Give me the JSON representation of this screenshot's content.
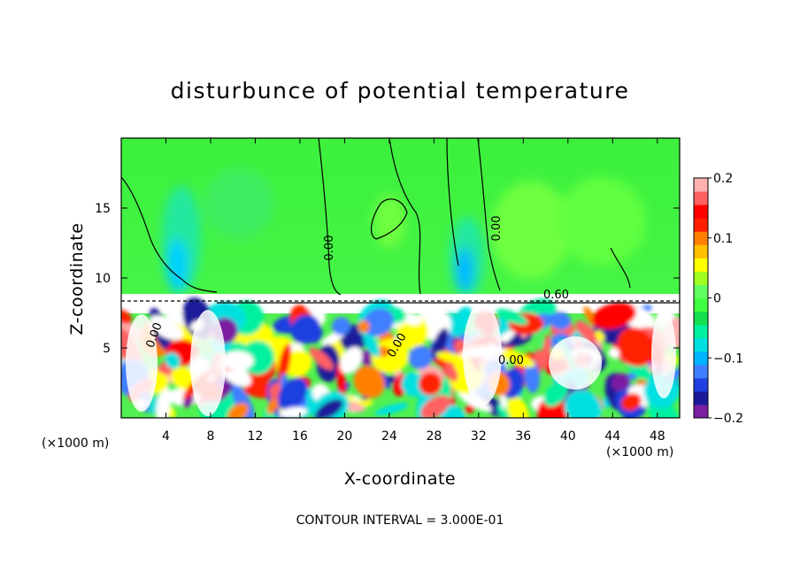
{
  "chart_data": {
    "type": "heatmap",
    "title": "disturbunce of potential temperature",
    "xlabel": "X-coordinate",
    "ylabel": "Z-coordinate",
    "x_unit": "(×1000 m)",
    "x_unit_right": "(×1000 m)",
    "xlim": [
      0,
      50
    ],
    "ylim": [
      0,
      20
    ],
    "x_ticks": [
      "4",
      "8",
      "12",
      "16",
      "20",
      "24",
      "28",
      "32",
      "36",
      "40",
      "44",
      "48"
    ],
    "y_ticks": [
      "5",
      "10",
      "15"
    ],
    "colorbar": {
      "range": [
        -0.2,
        0.2
      ],
      "ticks": [
        "0.2",
        "0.1",
        "0",
        "−0.1",
        "−0.2"
      ],
      "colors": [
        "#7b1fa2",
        "#1a1a9a",
        "#1f3fe0",
        "#3f7fff",
        "#00b4ff",
        "#00e0e0",
        "#00f0a0",
        "#14e050",
        "#40ff40",
        "#60ff60",
        "#a0ff20",
        "#ffff00",
        "#ffc000",
        "#ff8000",
        "#ff2000",
        "#ff0000",
        "#ff6060",
        "#ffb0b0"
      ]
    },
    "contour_labels": [
      "0.00",
      "0.00",
      "0.60",
      "0.00",
      "0.00",
      "0.00"
    ],
    "note": "CONTOUR INTERVAL = 3.000E-01"
  }
}
